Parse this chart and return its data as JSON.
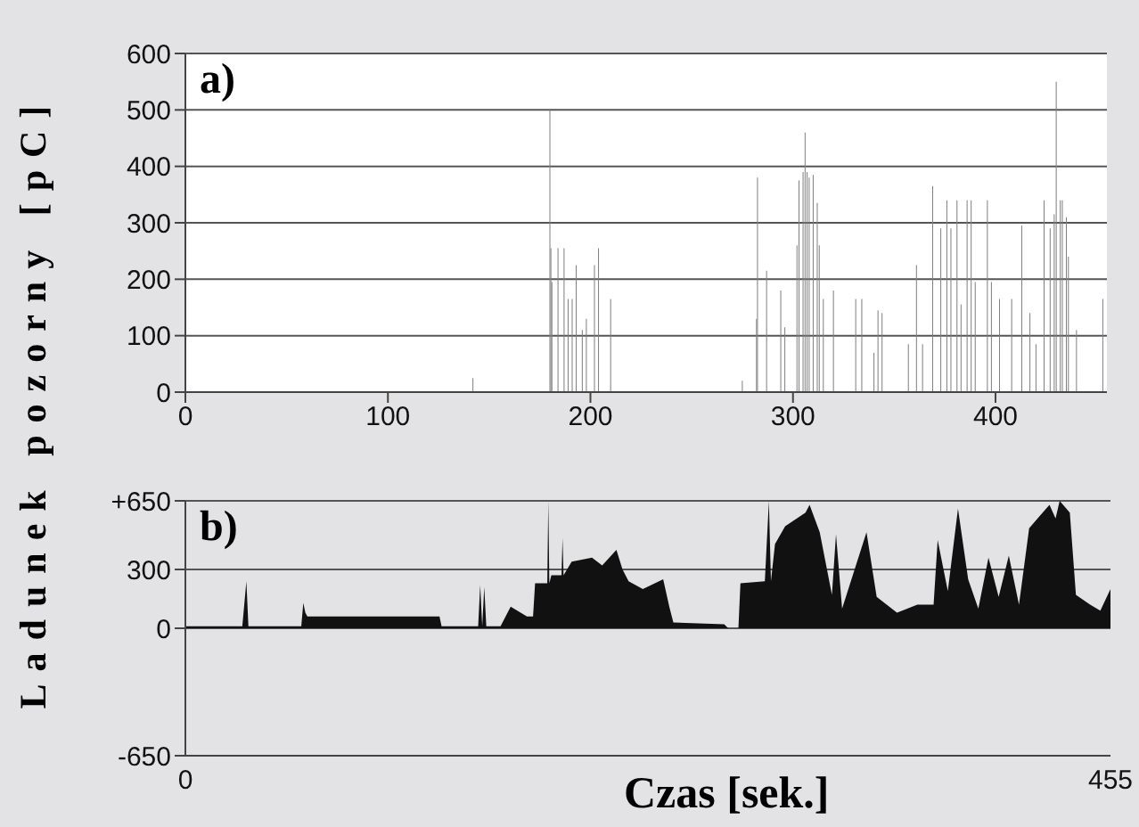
{
  "chart_data": [
    {
      "type": "bar",
      "title": "a)",
      "ylabel": "Ladunek pozorny [pC]",
      "x": [
        142,
        180,
        180.5,
        181,
        184,
        187,
        189,
        191,
        193,
        196,
        198,
        202,
        204,
        210,
        275,
        282,
        282.5,
        287,
        294,
        296,
        302,
        303,
        305,
        306,
        307,
        308,
        310,
        312,
        313,
        315,
        320,
        331,
        334,
        340,
        342,
        344,
        357,
        361,
        364,
        369,
        373,
        376,
        378,
        381,
        383,
        386,
        388,
        390,
        396,
        398,
        402,
        408,
        413,
        417,
        420,
        424,
        427,
        429,
        430,
        432,
        433,
        435,
        436,
        440,
        453
      ],
      "values": [
        25,
        500,
        255,
        195,
        255,
        255,
        165,
        165,
        225,
        110,
        130,
        225,
        255,
        165,
        20,
        130,
        380,
        215,
        180,
        115,
        260,
        375,
        390,
        460,
        390,
        380,
        385,
        335,
        260,
        165,
        180,
        165,
        165,
        70,
        145,
        140,
        85,
        225,
        85,
        365,
        290,
        340,
        290,
        340,
        155,
        340,
        340,
        195,
        340,
        195,
        165,
        165,
        295,
        140,
        85,
        340,
        290,
        315,
        550,
        340,
        340,
        310,
        240,
        110,
        165
      ],
      "color": "#808080",
      "xlim": [
        0,
        455
      ],
      "xticks": [
        0,
        100,
        200,
        300,
        400
      ],
      "ylim": [
        0,
        600
      ],
      "yticks": [
        0,
        100,
        200,
        300,
        400,
        500,
        600
      ],
      "grid": "y"
    },
    {
      "type": "area",
      "title": "b)",
      "xlabel": "Czas [sek.]",
      "x": [
        0,
        28,
        30,
        31,
        57,
        58,
        59,
        60,
        125,
        126,
        135,
        144,
        145,
        146,
        147,
        148,
        155,
        160,
        168,
        171,
        172,
        178,
        178.5,
        179,
        180,
        185,
        185.5,
        186,
        190,
        200,
        205,
        212,
        215,
        218,
        225,
        235,
        238,
        240,
        265,
        267,
        272,
        273,
        285,
        287,
        288,
        290,
        295,
        305,
        307,
        312,
        318,
        320,
        323,
        335,
        340,
        350,
        360,
        368,
        370,
        375,
        380,
        385,
        390,
        395,
        400,
        405,
        410,
        415,
        420,
        425,
        428,
        430,
        435,
        438,
        445,
        450,
        455
      ],
      "values": [
        10,
        10,
        240,
        10,
        10,
        130,
        80,
        60,
        60,
        10,
        10,
        10,
        220,
        10,
        210,
        10,
        10,
        110,
        60,
        60,
        230,
        230,
        650,
        230,
        270,
        270,
        460,
        270,
        340,
        360,
        320,
        400,
        300,
        240,
        200,
        250,
        110,
        30,
        20,
        0,
        0,
        230,
        240,
        650,
        240,
        430,
        520,
        590,
        630,
        490,
        170,
        480,
        100,
        490,
        160,
        80,
        120,
        120,
        450,
        190,
        610,
        250,
        100,
        360,
        160,
        370,
        120,
        510,
        570,
        630,
        560,
        650,
        590,
        170,
        120,
        90,
        200
      ],
      "color": "#111111",
      "xlim": [
        0,
        455
      ],
      "xticks": [
        0,
        455
      ],
      "ylim": [
        -650,
        650
      ],
      "yticks": [
        -650,
        0,
        300,
        {
          "value": 650,
          "label": "+650"
        }
      ],
      "grid": "y"
    }
  ]
}
